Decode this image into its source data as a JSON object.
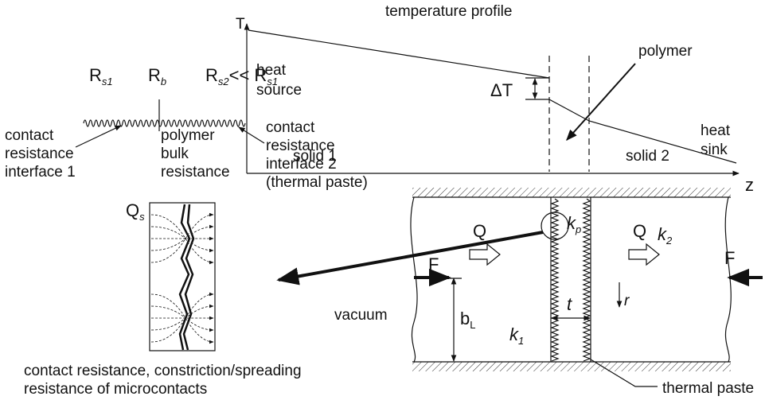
{
  "circuit": {
    "resistors": [
      {
        "symbol": "R",
        "subscript": "s1"
      },
      {
        "symbol": "R",
        "subscript": "b"
      },
      {
        "symbol": "R",
        "subscript": "s2",
        "relation": "<< R",
        "relation_subscript": "s1"
      }
    ],
    "labels": [
      {
        "lines": [
          "contact",
          "resistance",
          "interface 1"
        ]
      },
      {
        "lines": [
          "polymer",
          "bulk",
          "resistance"
        ]
      },
      {
        "lines": [
          "contact",
          "resistance",
          "interface 2",
          "(thermal paste)"
        ]
      }
    ]
  },
  "temperature_profile": {
    "title": "temperature profile",
    "y_axis": "T",
    "x_axis": "z",
    "heat_source": [
      "heat",
      "source"
    ],
    "delta_t": "ΔT",
    "polymer": "polymer",
    "heat_sink": [
      "heat",
      "sink"
    ],
    "solid_1": "solid 1",
    "solid_2": "solid 2"
  },
  "cross_section": {
    "q_s": {
      "symbol": "Q",
      "subscript": "s"
    },
    "q_left": "Q",
    "q_right": "Q",
    "k_p": {
      "symbol": "k",
      "subscript": "p"
    },
    "k_2": {
      "symbol": "k",
      "subscript": "2"
    },
    "k_1": {
      "symbol": "k",
      "subscript": "1"
    },
    "f_left": "F",
    "f_right": "F",
    "vacuum": "vacuum",
    "b_l": {
      "symbol": "b",
      "subscript": "L"
    },
    "t": "t",
    "r": "r",
    "inset_caption": [
      "contact resistance, constriction/spreading",
      "resistance of microcontacts"
    ],
    "thermal_paste": "thermal paste"
  }
}
